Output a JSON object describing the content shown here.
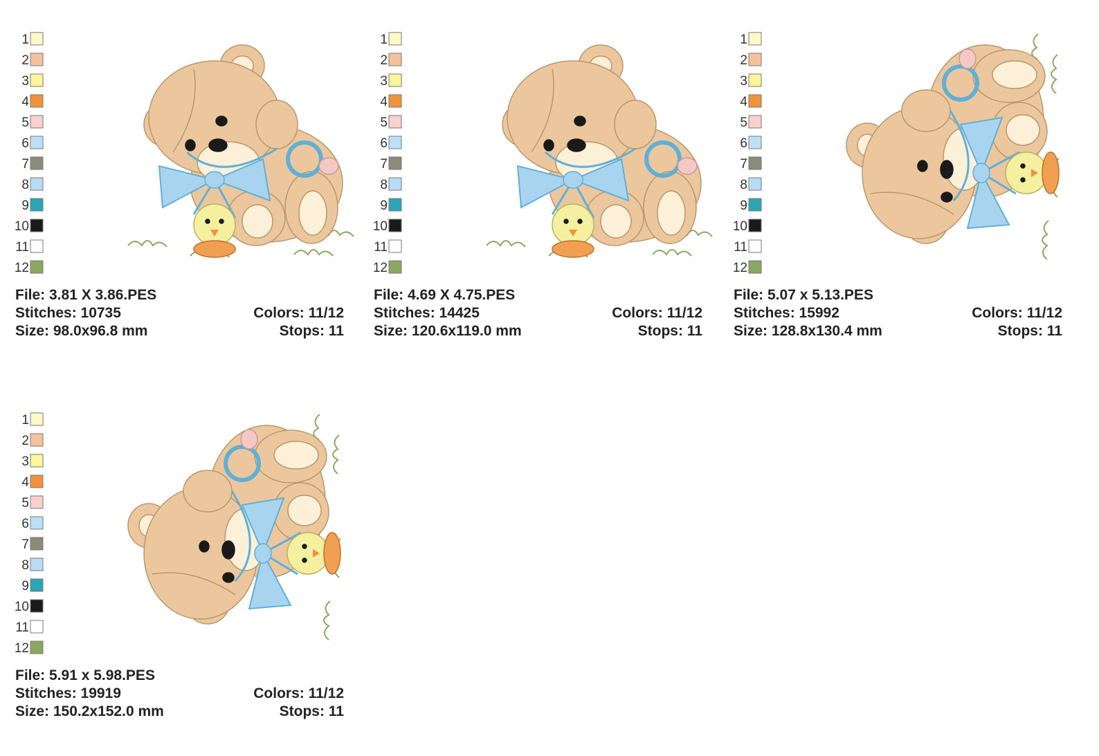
{
  "palette": [
    {
      "number": 1,
      "color": "#fff8c8"
    },
    {
      "number": 2,
      "color": "#f4c29c"
    },
    {
      "number": 3,
      "color": "#fff59a"
    },
    {
      "number": 4,
      "color": "#f0923c"
    },
    {
      "number": 5,
      "color": "#f9d0cc"
    },
    {
      "number": 6,
      "color": "#bde0f8"
    },
    {
      "number": 7,
      "color": "#8c8a78"
    },
    {
      "number": 8,
      "color": "#b8dcf5"
    },
    {
      "number": 9,
      "color": "#2aa6b8"
    },
    {
      "number": 10,
      "color": "#1a1a1a"
    },
    {
      "number": 11,
      "color": "#ffffff"
    },
    {
      "number": 12,
      "color": "#8aa860"
    }
  ],
  "panels": [
    {
      "file": "File: 3.81 X 3.86.PES",
      "stitches": "Stitches: 10735",
      "size": "Size: 98.0x96.8 mm",
      "colors": "Colors: 11/12",
      "stops": "Stops: 11"
    },
    {
      "file": "File: 4.69 X 4.75.PES",
      "stitches": "Stitches: 14425",
      "size": "Size: 120.6x119.0 mm",
      "colors": "Colors: 11/12",
      "stops": "Stops: 11"
    },
    {
      "file": "File: 5.07 x 5.13.PES",
      "stitches": "Stitches: 15992",
      "size": "Size: 128.8x130.4 mm",
      "colors": "Colors: 11/12",
      "stops": "Stops: 11"
    },
    {
      "file": "File: 5.91 x 5.98.PES",
      "stitches": "Stitches: 19919",
      "size": "Size: 150.2x152.0 mm",
      "colors": "Colors: 11/12",
      "stops": "Stops: 11"
    }
  ]
}
